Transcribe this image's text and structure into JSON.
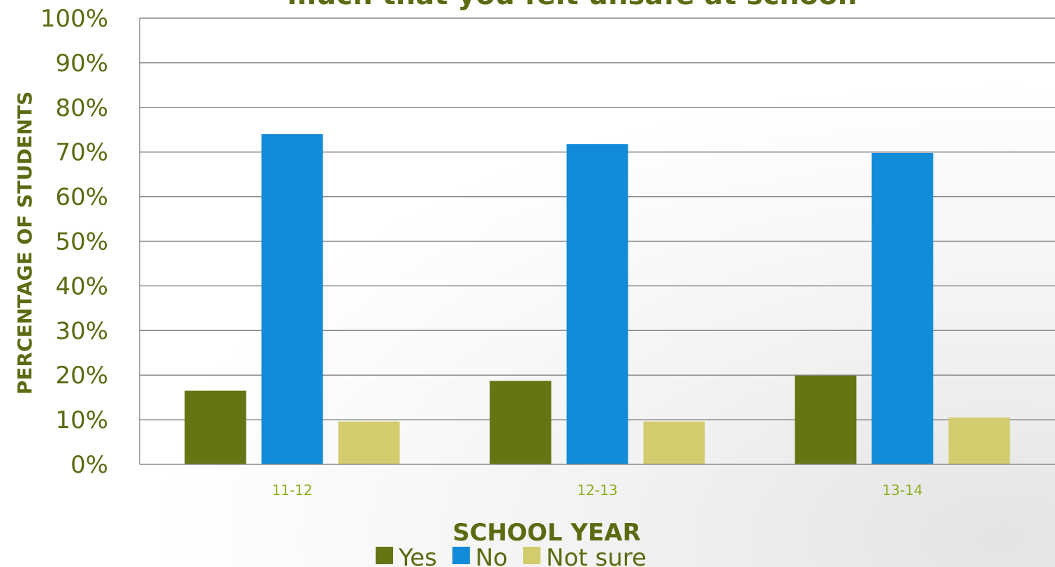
{
  "chart_data": {
    "type": "bar",
    "title": "much that you felt unsafe at school.",
    "xlabel": "SCHOOL YEAR",
    "ylabel": "PERCENTAGE OF STUDENTS",
    "categories": [
      "11-12",
      "12-13",
      "13-14"
    ],
    "series": [
      {
        "name": "Yes",
        "color": "#667413",
        "values": [
          16.5,
          18.7,
          19.9
        ]
      },
      {
        "name": "No",
        "color": "#128bd8",
        "values": [
          74,
          71.8,
          69.8
        ]
      },
      {
        "name": "Not sure",
        "color": "#d2cc6e",
        "values": [
          9.6,
          9.6,
          10.5
        ]
      }
    ],
    "ylim": [
      0,
      100
    ],
    "yticks": [
      0,
      10,
      20,
      30,
      40,
      50,
      60,
      70,
      80,
      90,
      100
    ],
    "ytick_labels": [
      "0%",
      "10%",
      "20%",
      "30%",
      "40%",
      "50%",
      "60%",
      "70%",
      "80%",
      "90%",
      "100%"
    ],
    "grid": true,
    "legend_position": "bottom",
    "text_color": "#5b6b12",
    "xtick_color": "#8cae1e",
    "grid_color": "#8a8a8a"
  }
}
